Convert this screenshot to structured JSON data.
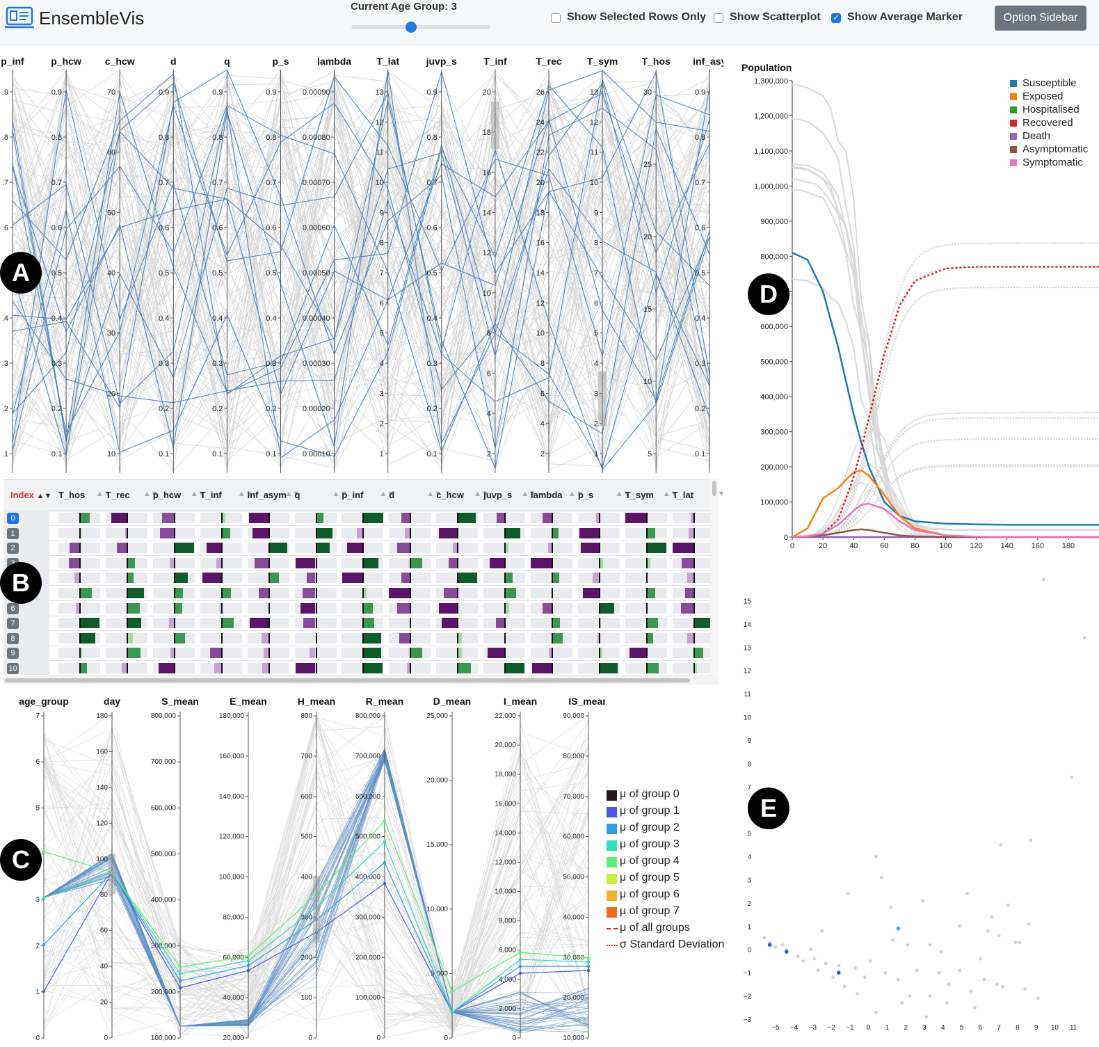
{
  "header": {
    "app_title": "EnsembleVis",
    "age_group_label": "Current Age Group: 3",
    "age_group_value": 3,
    "checkboxes": [
      {
        "label": "Show Selected Rows Only",
        "checked": false
      },
      {
        "label": "Show Scatterplot",
        "checked": false
      },
      {
        "label": "Show Average Marker",
        "checked": true
      }
    ],
    "option_sidebar_label": "Option Sidebar",
    "accent_color": "#1f74e6"
  },
  "view_labels": [
    "A",
    "B",
    "C",
    "D",
    "E"
  ],
  "parallel_top": {
    "axes": [
      {
        "name": "p_inf",
        "ticks": [
          ".9",
          ".8",
          ".7",
          ".6",
          ".5",
          ".4",
          ".3",
          ".2",
          ".1"
        ]
      },
      {
        "name": "p_hcw",
        "ticks": [
          "0.9",
          "0.8",
          "0.7",
          "0.6",
          "0.5",
          "0.4",
          "0.3",
          "0.2",
          "0.1"
        ]
      },
      {
        "name": "c_hcw",
        "ticks": [
          "70",
          "60",
          "50",
          "40",
          "30",
          "20",
          "10"
        ]
      },
      {
        "name": "d",
        "ticks": [
          "0.9",
          "0.8",
          "0.7",
          "0.6",
          "0.5",
          "0.4",
          "0.3",
          "0.2",
          "0.1"
        ]
      },
      {
        "name": "q",
        "ticks": [
          "0.9",
          "0.8",
          "0.7",
          "0.6",
          "0.5",
          "0.4",
          "0.3",
          "0.2",
          "0.1"
        ]
      },
      {
        "name": "p_s",
        "ticks": [
          "0.9",
          "0.8",
          "0.7",
          "0.6",
          "0.5",
          "0.4",
          "0.3",
          "0.2",
          "0.1"
        ]
      },
      {
        "name": "lambda",
        "ticks": [
          "0.00090",
          "0.00080",
          "0.00070",
          "0.00060",
          "0.00050",
          "0.00040",
          "0.00030",
          "0.00020",
          "0.00010"
        ]
      },
      {
        "name": "T_lat",
        "ticks": [
          "13",
          "12",
          "11",
          "10",
          "9",
          "8",
          "7",
          "6",
          "5",
          "4",
          "3",
          "2",
          "1"
        ]
      },
      {
        "name": "juvp_s",
        "ticks": [
          "0.9",
          "0.8",
          "0.7",
          "0.6",
          "0.5",
          "0.4",
          "0.3",
          "0.2",
          "0.1"
        ]
      },
      {
        "name": "T_inf",
        "ticks": [
          "20",
          "18",
          "16",
          "14",
          "12",
          "10",
          "8",
          "6",
          "4",
          "2"
        ]
      },
      {
        "name": "T_rec",
        "ticks": [
          "26",
          "24",
          "22",
          "20",
          "18",
          "16",
          "14",
          "12",
          "10",
          "8",
          "6",
          "4",
          "2"
        ]
      },
      {
        "name": "T_sym",
        "ticks": [
          "13",
          "12",
          "11",
          "10",
          "9",
          "8",
          "7",
          "6",
          "5",
          "4",
          "3",
          "2",
          "1"
        ]
      },
      {
        "name": "T_hos",
        "ticks": [
          "30",
          "25",
          "20",
          "15",
          "10",
          "5"
        ]
      },
      {
        "name": "inf_asy",
        "ticks": [
          "0.9",
          "0.8",
          "0.7",
          "0.6",
          "0.5",
          "0.4",
          "0.3",
          "0.2",
          "0.1"
        ]
      }
    ],
    "highlight_color": "#4a7fbf",
    "background_line_color": "#d6d6d6"
  },
  "table": {
    "index_header": "Index",
    "columns": [
      "T_hos",
      "T_rec",
      "p_hcw",
      "T_inf",
      "inf_asym",
      "q",
      "p_inf",
      "d",
      "c_hcw",
      "juvp_s",
      "lambda",
      "p_s",
      "T_sym",
      "T_lat"
    ],
    "row_indices": [
      "0",
      "1",
      "2",
      "3",
      "4",
      "5",
      "6",
      "7",
      "8",
      "9",
      "10"
    ],
    "selected_row": "0",
    "colors": {
      "purple_dark": "#5b1468",
      "purple": "#8a4a9c",
      "purple_light": "#c7a3d1",
      "green_dark": "#0f5b2c",
      "green": "#3a9950",
      "green_light": "#a6dba0",
      "track": "#e9ebee"
    }
  },
  "parallel_bottom": {
    "axes": [
      {
        "name": "age_group",
        "ticks": [
          "7",
          "6",
          "5",
          "4",
          "3",
          "2",
          "1",
          "0"
        ]
      },
      {
        "name": "day",
        "ticks": [
          "180",
          "160",
          "140",
          "120",
          "100",
          "80",
          "60",
          "40",
          "20",
          "0"
        ]
      },
      {
        "name": "S_mean",
        "ticks": [
          "800,000",
          "700,000",
          "600,000",
          "500,000",
          "400,000",
          "300,000",
          "200,000",
          "100,000"
        ]
      },
      {
        "name": "E_mean",
        "ticks": [
          "180,000",
          "160,000",
          "140,000",
          "120,000",
          "100,000",
          "80,000",
          "60,000",
          "40,000",
          "20,000"
        ]
      },
      {
        "name": "H_mean",
        "ticks": [
          "800",
          "700",
          "600",
          "500",
          "400",
          "300",
          "200",
          "100",
          "0"
        ]
      },
      {
        "name": "R_mean",
        "ticks": [
          "800,000",
          "700,000",
          "600,000",
          "500,000",
          "400,000",
          "300,000",
          "200,000",
          "100,000",
          "0"
        ]
      },
      {
        "name": "D_mean",
        "ticks": [
          "25,000",
          "20,000",
          "15,000",
          "10,000",
          "5,000",
          "0"
        ]
      },
      {
        "name": "I_mean",
        "ticks": [
          "22,000",
          "20,000",
          "18,000",
          "16,000",
          "14,000",
          "12,000",
          "10,000",
          "8,000",
          "6,000",
          "4,000",
          "2,000",
          "0"
        ]
      },
      {
        "name": "IS_mean",
        "ticks": [
          "90,000",
          "80,000",
          "70,000",
          "60,000",
          "50,000",
          "40,000",
          "30,000",
          "20,000",
          "10,000"
        ]
      }
    ],
    "legend": [
      {
        "label": "μ of group 0",
        "color": "#231a1a",
        "kind": "swatch"
      },
      {
        "label": "μ of group 1",
        "color": "#4a5ae0",
        "kind": "swatch"
      },
      {
        "label": "μ of group 2",
        "color": "#2e9fe6",
        "kind": "swatch"
      },
      {
        "label": "μ of group 3",
        "color": "#2fe0b0",
        "kind": "swatch"
      },
      {
        "label": "μ of group 4",
        "color": "#5ef070",
        "kind": "swatch"
      },
      {
        "label": "μ of group 5",
        "color": "#c5ef3a",
        "kind": "swatch"
      },
      {
        "label": "μ of group 6",
        "color": "#f2b22e",
        "kind": "swatch"
      },
      {
        "label": "μ of group 7",
        "color": "#f06a1e",
        "kind": "swatch"
      },
      {
        "label": "μ of all groups",
        "color": "#e02020",
        "kind": "dash"
      },
      {
        "label": "σ Standard Deviation",
        "color": "#e02020",
        "kind": "dot"
      }
    ]
  },
  "line_chart": {
    "ylabel": "Population",
    "yticks": [
      "1,300,000",
      "1,200,000",
      "1,100,000",
      "1,000,000",
      "900,000",
      "800,000",
      "700,000",
      "600,000",
      "500,000",
      "400,000",
      "300,000",
      "200,000",
      "100,000",
      "0"
    ],
    "xticks": [
      "0",
      "20",
      "40",
      "60",
      "80",
      "100",
      "120",
      "140",
      "160",
      "180"
    ],
    "legend": [
      {
        "label": "Susceptible",
        "color": "#1f77b4"
      },
      {
        "label": "Exposed",
        "color": "#ff7f0e"
      },
      {
        "label": "Hospitalised",
        "color": "#2ca02c"
      },
      {
        "label": "Recovered",
        "color": "#d62728"
      },
      {
        "label": "Death",
        "color": "#9467bd"
      },
      {
        "label": "Asymptomatic",
        "color": "#8c564b"
      },
      {
        "label": "Symptomatic",
        "color": "#e377c2"
      }
    ]
  },
  "chart_data": [
    {
      "type": "line",
      "ylabel": "Population",
      "xlim": [
        0,
        200
      ],
      "ylim": [
        0,
        1300000
      ],
      "x": [
        0,
        10,
        20,
        30,
        40,
        45,
        50,
        60,
        70,
        80,
        100,
        120,
        140,
        160,
        180,
        200
      ],
      "series": [
        {
          "name": "Susceptible",
          "values": [
            810000,
            790000,
            700000,
            540000,
            350000,
            270000,
            200000,
            100000,
            60000,
            45000,
            38000,
            36000,
            35000,
            35000,
            35000,
            35000
          ]
        },
        {
          "name": "Exposed",
          "values": [
            0,
            25000,
            110000,
            140000,
            185000,
            190000,
            175000,
            120000,
            60000,
            25000,
            5000,
            1000,
            0,
            0,
            0,
            0
          ]
        },
        {
          "name": "Hospitalised",
          "values": [
            0,
            0,
            0,
            0,
            0,
            0,
            0,
            0,
            0,
            0,
            0,
            0,
            0,
            0,
            0,
            0
          ]
        },
        {
          "name": "Recovered",
          "values": [
            0,
            2000,
            10000,
            50000,
            170000,
            250000,
            340000,
            520000,
            660000,
            730000,
            765000,
            770000,
            770000,
            770000,
            770000,
            770000
          ]
        },
        {
          "name": "Death",
          "values": [
            0,
            0,
            0,
            0,
            0,
            0,
            0,
            0,
            0,
            0,
            0,
            0,
            0,
            0,
            0,
            0
          ]
        },
        {
          "name": "Asymptomatic",
          "values": [
            0,
            1000,
            5000,
            12000,
            20000,
            22000,
            20000,
            12000,
            5000,
            2000,
            0,
            0,
            0,
            0,
            0,
            0
          ]
        },
        {
          "name": "Symptomatic",
          "values": [
            0,
            2000,
            10000,
            35000,
            75000,
            92000,
            95000,
            80000,
            45000,
            20000,
            5000,
            1000,
            0,
            0,
            0,
            0
          ]
        }
      ]
    },
    {
      "type": "scatter",
      "xlim": [
        -6,
        12
      ],
      "ylim": [
        -3,
        16
      ],
      "xticks": [
        "−5",
        "−4",
        "−3",
        "−2",
        "−1",
        "0",
        "1",
        "2",
        "3",
        "4",
        "5",
        "6",
        "7",
        "8",
        "9",
        "10",
        "11"
      ],
      "yticks": [
        "15",
        "14",
        "13",
        "12",
        "11",
        "10",
        "9",
        "8",
        "7",
        "5",
        "4",
        "3",
        "2",
        "1",
        "0",
        "−1",
        "−2",
        "−3"
      ],
      "highlight_color": "#2e86de",
      "points": [
        {
          "x": 9.4,
          "y": 15.9
        },
        {
          "x": 11.6,
          "y": 13.4
        },
        {
          "x": 10.9,
          "y": 7.4
        },
        {
          "x": 8.7,
          "y": 4.7
        },
        {
          "x": 7.1,
          "y": 4.5
        },
        {
          "x": 0.4,
          "y": 4.0
        },
        {
          "x": 0.7,
          "y": 3.1
        },
        {
          "x": -1.1,
          "y": 2.4
        },
        {
          "x": 5.3,
          "y": 2.4
        },
        {
          "x": 2.9,
          "y": 2.1
        },
        {
          "x": 7.5,
          "y": 1.9
        },
        {
          "x": 1.2,
          "y": 1.8
        },
        {
          "x": 6.6,
          "y": 1.4
        },
        {
          "x": 4.9,
          "y": 1.0
        },
        {
          "x": 8.6,
          "y": 1.1
        },
        {
          "x": -2.5,
          "y": 0.8
        },
        {
          "x": 7.9,
          "y": 0.3
        },
        {
          "x": 8.1,
          "y": 0.3
        },
        {
          "x": 3.3,
          "y": 0.2
        },
        {
          "x": -4.6,
          "y": 0.2
        },
        {
          "x": 2.1,
          "y": 0.2
        },
        {
          "x": -5.6,
          "y": 0.5
        },
        {
          "x": -5.3,
          "y": 0.3
        },
        {
          "x": -5.0,
          "y": 0.1
        },
        {
          "x": -3.8,
          "y": -0.3
        },
        {
          "x": -3.5,
          "y": -0.5
        },
        {
          "x": -2.9,
          "y": -0.4
        },
        {
          "x": -2.3,
          "y": -0.6
        },
        {
          "x": -1.6,
          "y": -0.7
        },
        {
          "x": -0.7,
          "y": -0.8
        },
        {
          "x": -0.2,
          "y": -1.2
        },
        {
          "x": 0.9,
          "y": -1.0
        },
        {
          "x": 1.6,
          "y": -1.3
        },
        {
          "x": 2.6,
          "y": -0.9
        },
        {
          "x": 3.8,
          "y": -1.0
        },
        {
          "x": 4.9,
          "y": -0.9
        },
        {
          "x": 6.2,
          "y": -1.3
        },
        {
          "x": 6.9,
          "y": -1.5
        },
        {
          "x": 7.2,
          "y": -1.6
        },
        {
          "x": 2.2,
          "y": -2.0
        },
        {
          "x": 1.8,
          "y": -2.3
        },
        {
          "x": 3.3,
          "y": -2.0
        },
        {
          "x": 0.4,
          "y": -2.7
        },
        {
          "x": 4.2,
          "y": -2.3
        },
        {
          "x": 5.7,
          "y": -2.5
        },
        {
          "x": 3.1,
          "y": -2.9
        },
        {
          "x": -1.3,
          "y": -1.6
        },
        {
          "x": -0.6,
          "y": -1.9
        },
        {
          "x": 5.5,
          "y": -1.8
        },
        {
          "x": 8.4,
          "y": -1.7
        },
        {
          "x": 6.0,
          "y": -0.4
        },
        {
          "x": 9.1,
          "y": -2.1
        },
        {
          "x": -4.4,
          "y": 0.0
        },
        {
          "x": -3.1,
          "y": 0.0
        },
        {
          "x": -2.7,
          "y": -0.9
        },
        {
          "x": -1.9,
          "y": -1.2
        },
        {
          "x": 0.1,
          "y": -0.5
        },
        {
          "x": 1.3,
          "y": 0.4
        },
        {
          "x": 4.3,
          "y": -1.5
        },
        {
          "x": 6.4,
          "y": 0.8
        },
        {
          "x": 7.0,
          "y": 0.6
        },
        {
          "x": 3.9,
          "y": -0.1
        }
      ],
      "highlighted_points": [
        {
          "x": 1.6,
          "y": 0.9
        },
        {
          "x": -5.3,
          "y": 0.2
        },
        {
          "x": -4.4,
          "y": -0.1
        },
        {
          "x": -1.6,
          "y": -1.0
        }
      ]
    }
  ]
}
